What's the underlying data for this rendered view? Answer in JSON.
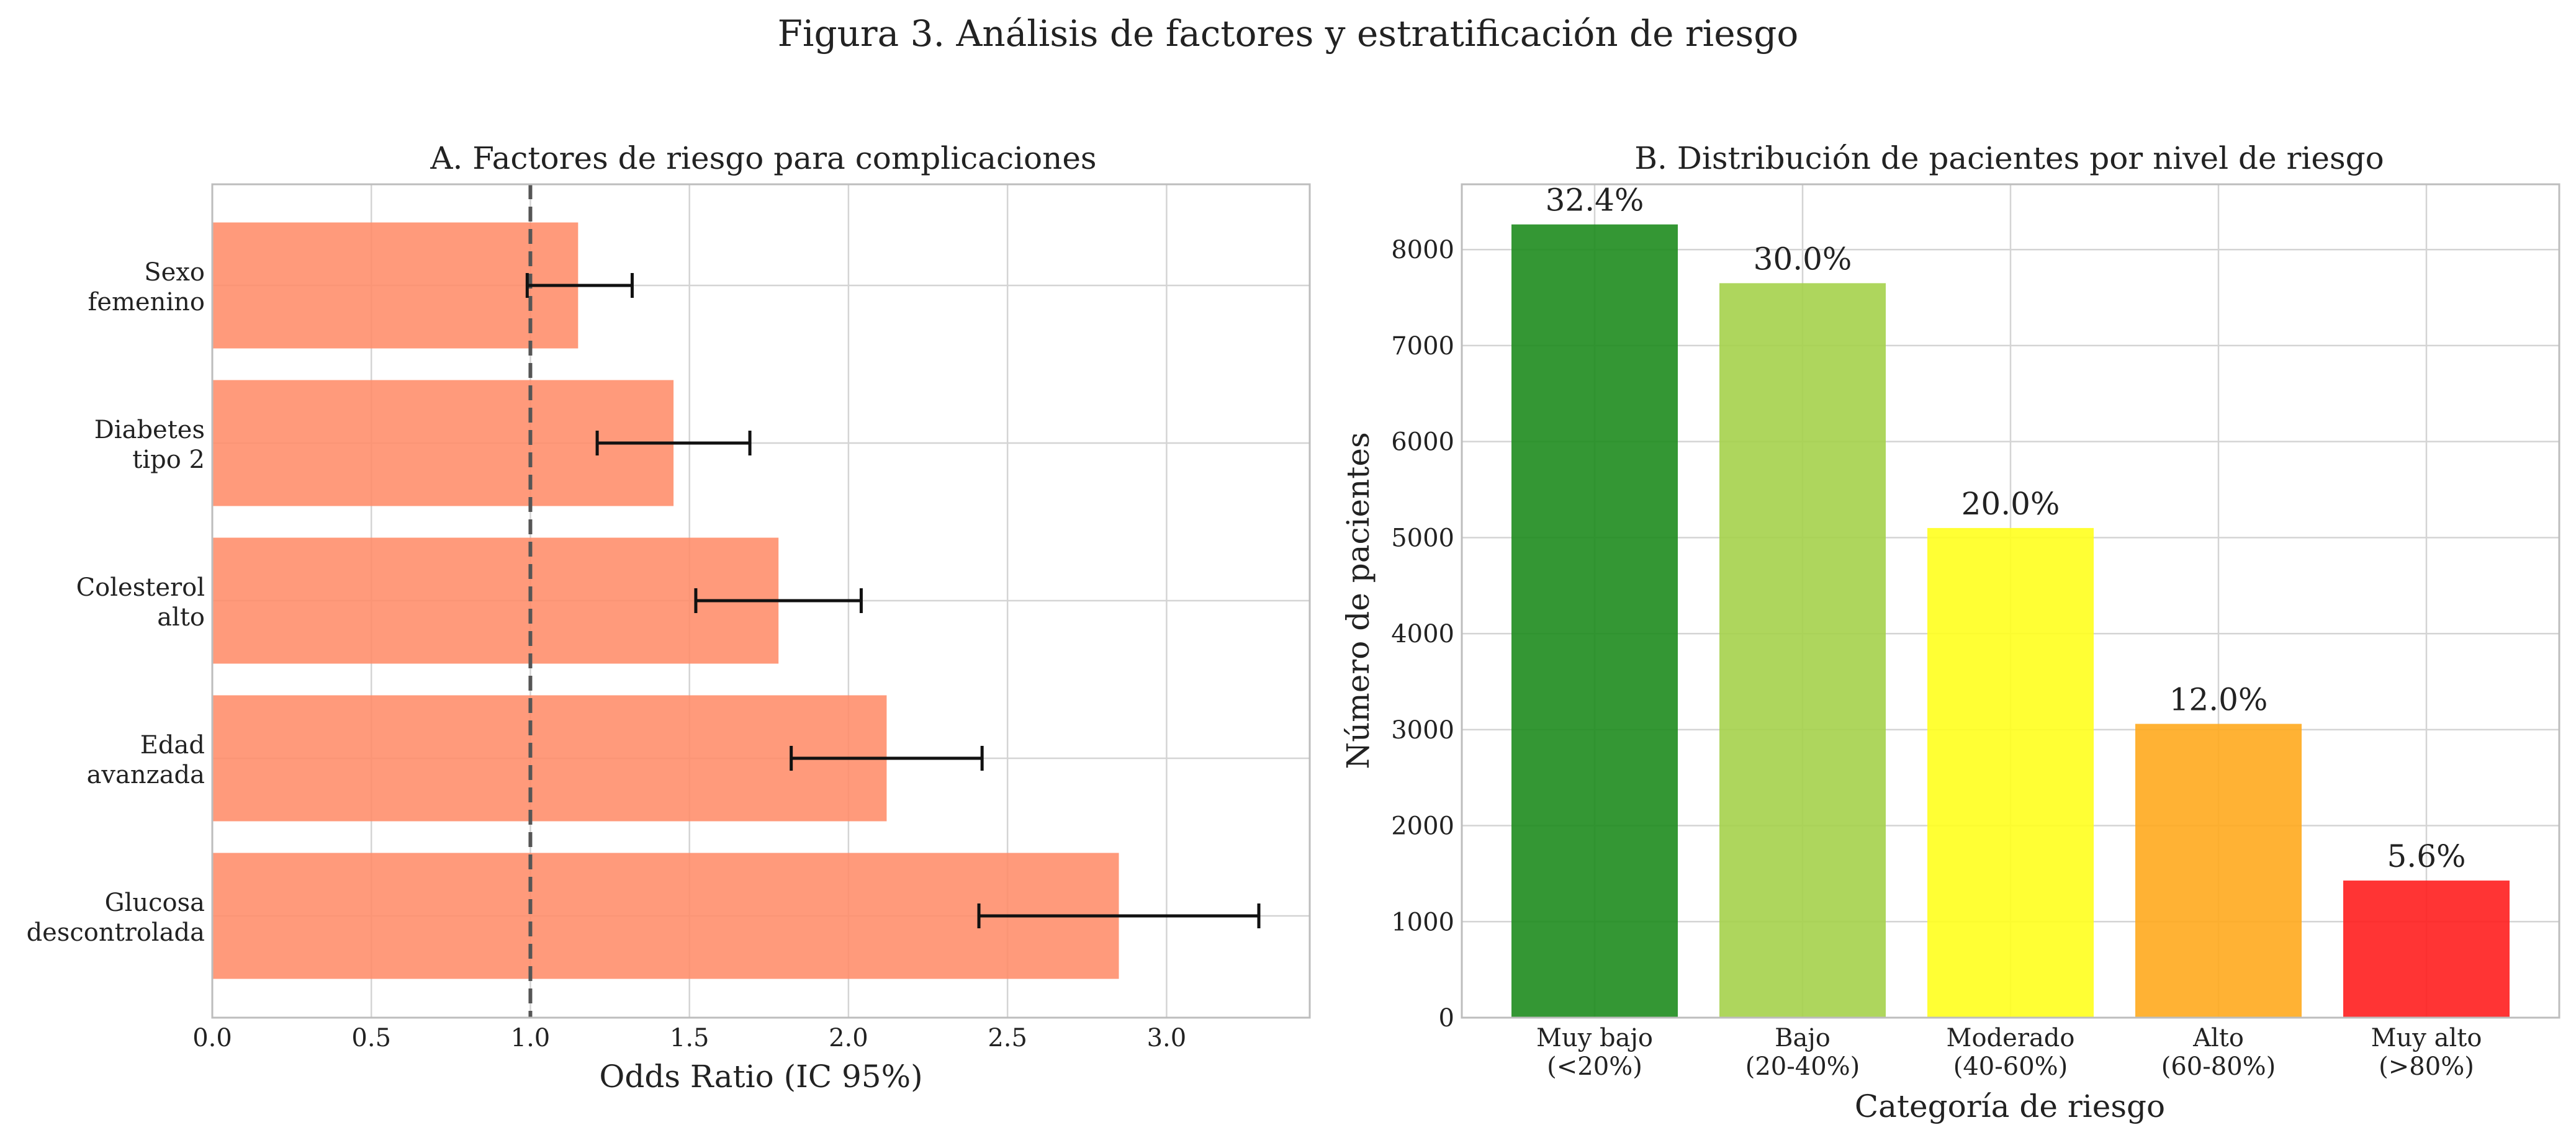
{
  "figure_title": "Figura 3. Análisis de factores y estratificación de riesgo",
  "colors": {
    "or_bar": "#FF8C69",
    "ref_line": "#555555",
    "error_bar": "#111111"
  },
  "chart_data": [
    {
      "type": "bar",
      "orientation": "horizontal",
      "title": "A. Factores de riesgo para complicaciones",
      "xlabel": "Odds Ratio (IC 95%)",
      "ylabel": "",
      "categories": [
        "Sexo\nfemenino",
        "Diabetes\ntipo 2",
        "Colesterol\nalto",
        "Edad\navanzada",
        "Glucosa\ndescontrolada"
      ],
      "values": [
        1.15,
        1.45,
        1.78,
        2.12,
        2.85
      ],
      "ci_low": [
        0.99,
        1.21,
        1.52,
        1.82,
        2.41
      ],
      "ci_high": [
        1.32,
        1.69,
        2.04,
        2.42,
        3.29
      ],
      "reference_line": 1.0,
      "xlim": [
        0,
        3.45
      ],
      "xticks": [
        0.0,
        0.5,
        1.0,
        1.5,
        2.0,
        2.5,
        3.0
      ],
      "tick_labels": [
        "0.0",
        "0.5",
        "1.0",
        "1.5",
        "2.0",
        "2.5",
        "3.0"
      ],
      "grid": true
    },
    {
      "type": "bar",
      "orientation": "vertical",
      "title": "B. Distribución de pacientes por nivel de riesgo",
      "xlabel": "Categoría de riesgo",
      "ylabel": "Número de pacientes",
      "categories": [
        "Muy bajo\n(<20%)",
        "Bajo\n(20-40%)",
        "Moderado\n(40-60%)",
        "Alto\n(60-80%)",
        "Muy alto\n(>80%)"
      ],
      "values": [
        8262,
        7650,
        5100,
        3060,
        1428
      ],
      "data_labels": [
        "32.4%",
        "30.0%",
        "20.0%",
        "12.0%",
        "5.6%"
      ],
      "colors": [
        "#1E8C1E",
        "#A5D24B",
        "#FFFF1E",
        "#FFAA1E",
        "#FF1E1E"
      ],
      "ylim": [
        0,
        8680
      ],
      "yticks": [
        0,
        1000,
        2000,
        3000,
        4000,
        5000,
        6000,
        7000,
        8000
      ],
      "tick_labels": [
        "0",
        "1000",
        "2000",
        "3000",
        "4000",
        "5000",
        "6000",
        "7000",
        "8000"
      ],
      "grid": true
    }
  ]
}
